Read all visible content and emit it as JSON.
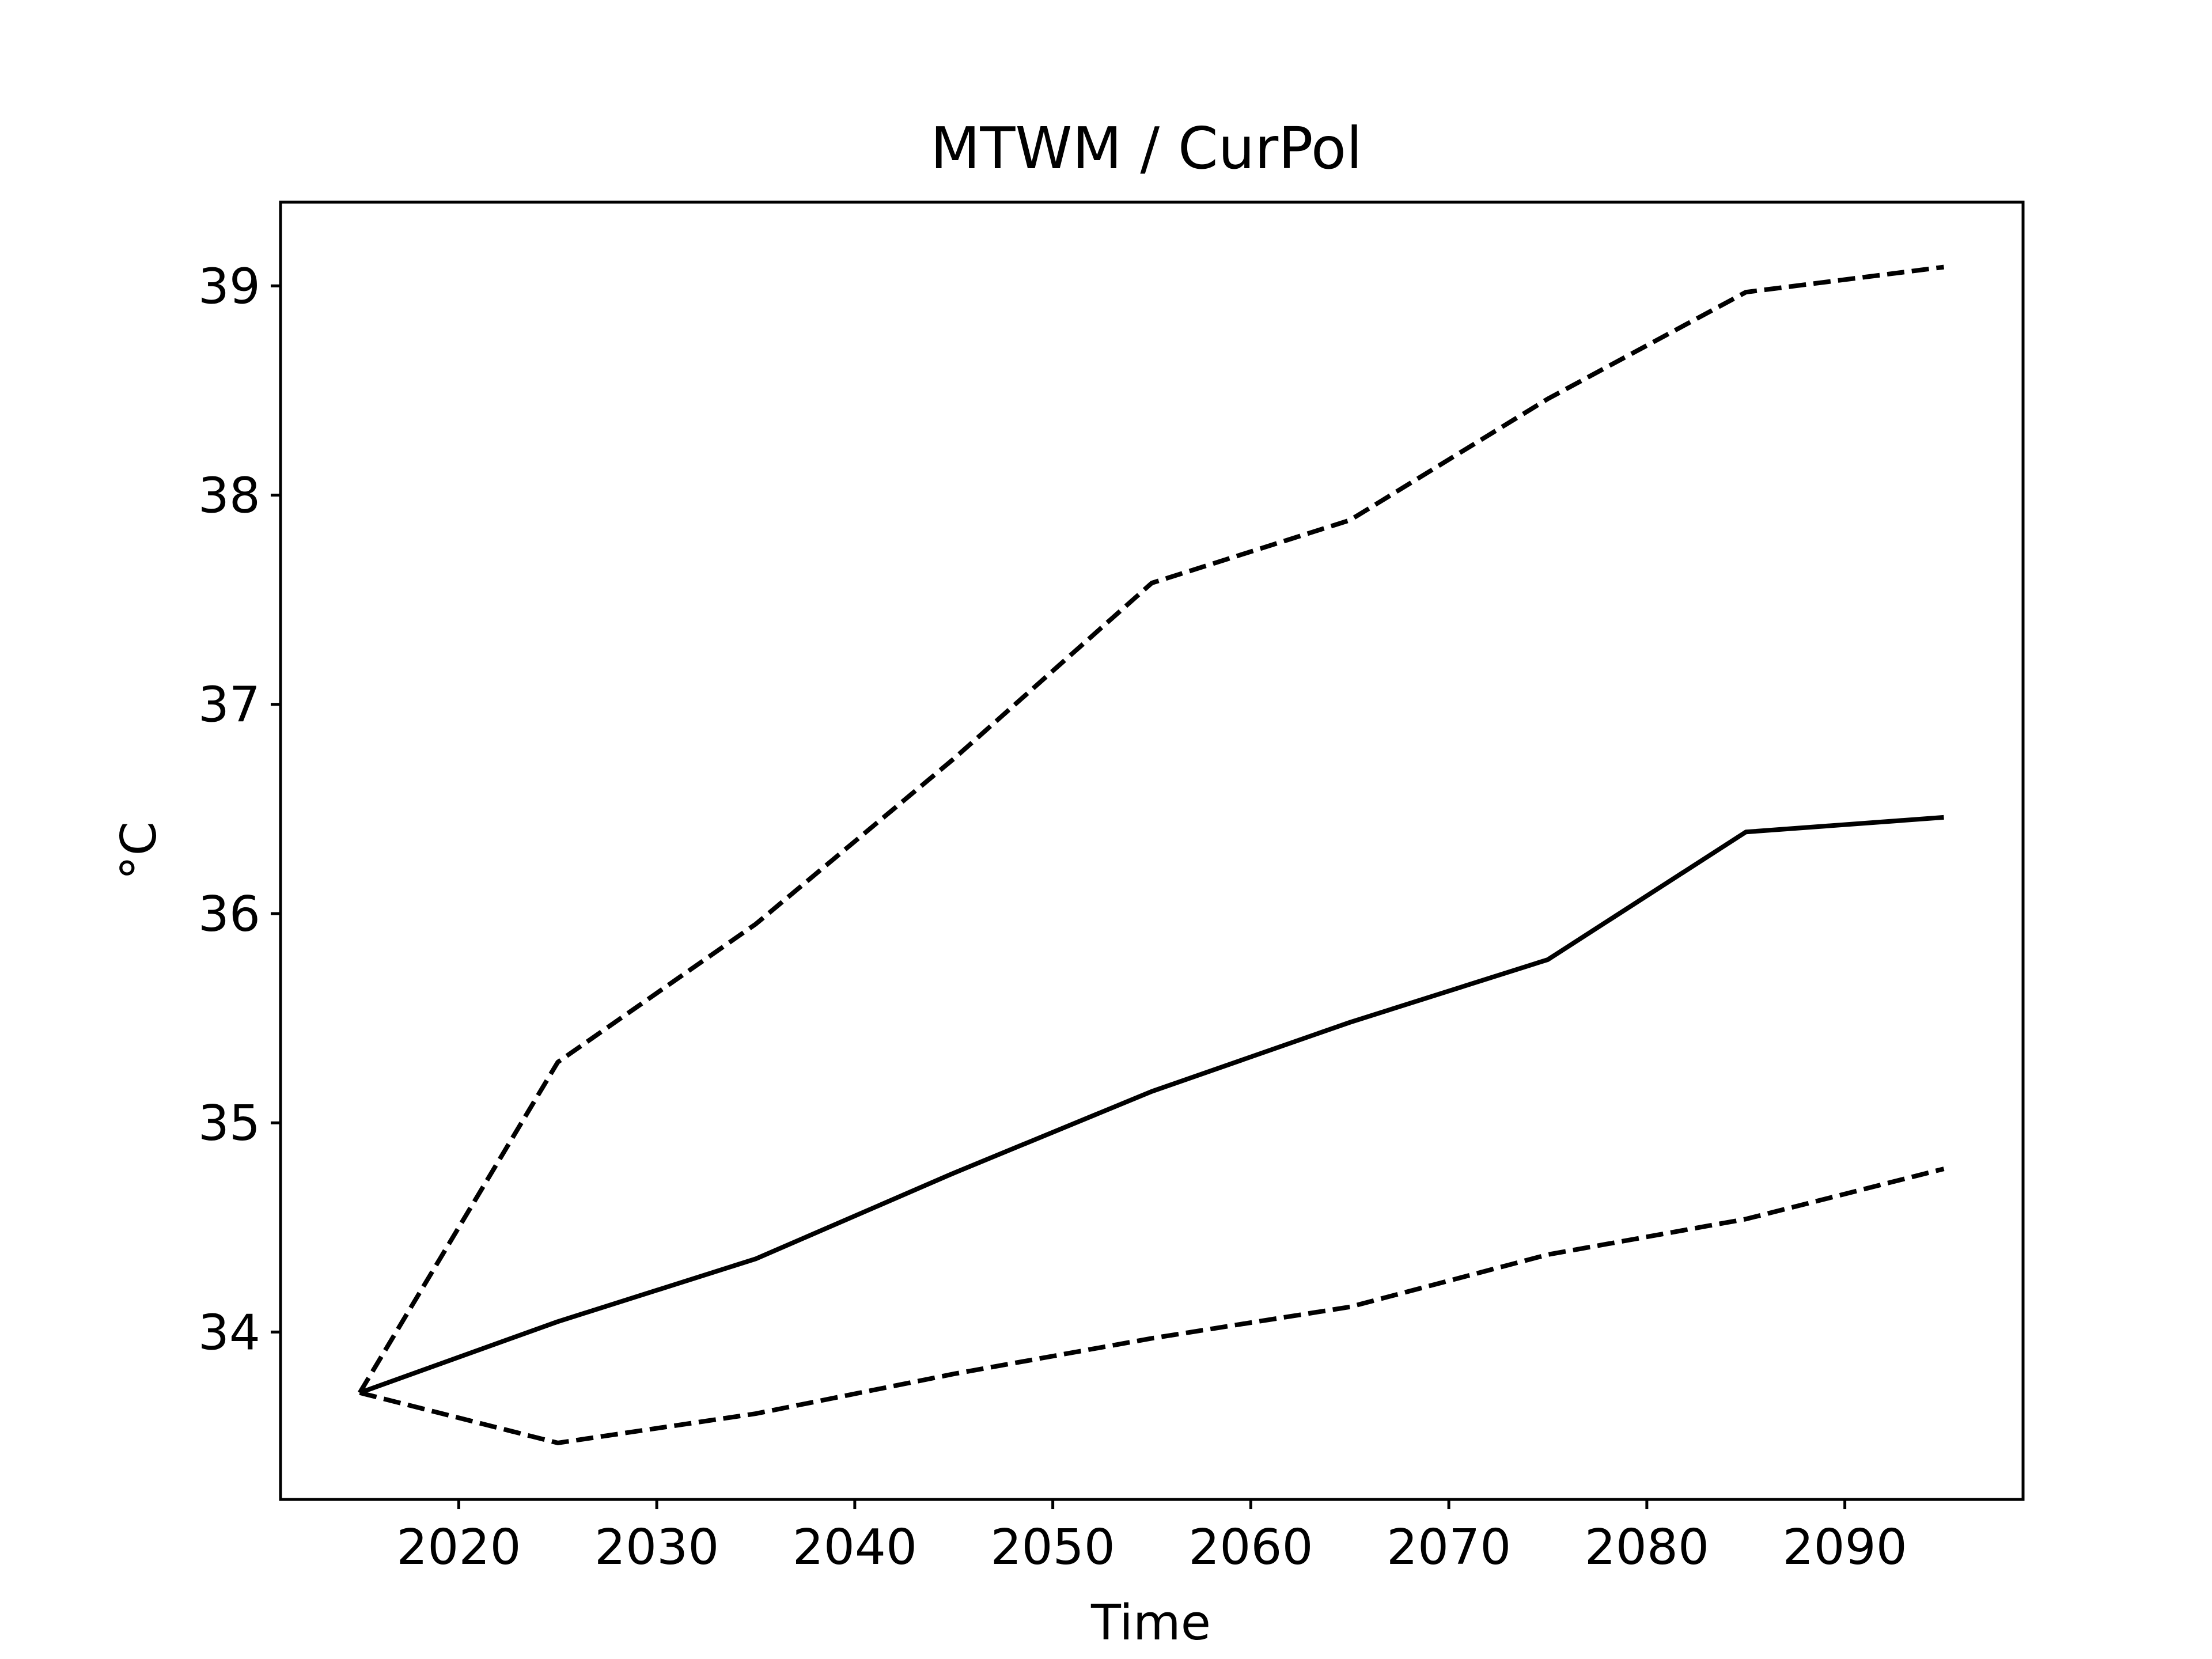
{
  "chart_data": {
    "type": "line",
    "title": "MTWM / CurPol",
    "xlabel": "Time",
    "ylabel": "°C",
    "xlim": [
      2011,
      2099
    ],
    "ylim": [
      33.2,
      39.4
    ],
    "xticks": [
      2020,
      2030,
      2040,
      2050,
      2060,
      2070,
      2080,
      2090
    ],
    "yticks": [
      34,
      35,
      36,
      37,
      38,
      39
    ],
    "grid": false,
    "legend": "none",
    "x": [
      2015,
      2025,
      2035,
      2045,
      2055,
      2065,
      2075,
      2085,
      2095
    ],
    "series": [
      {
        "style": "solid",
        "color": "#000000",
        "values": [
          33.71,
          34.05,
          34.35,
          34.76,
          35.15,
          35.48,
          35.78,
          36.39,
          36.46
        ]
      },
      {
        "style": "dashed",
        "color": "#000000",
        "values": [
          33.71,
          35.29,
          35.95,
          36.74,
          37.58,
          37.88,
          38.46,
          38.97,
          39.09
        ]
      },
      {
        "style": "dashed",
        "color": "#000000",
        "values": [
          33.71,
          33.47,
          33.61,
          33.8,
          33.97,
          34.12,
          34.37,
          34.54,
          34.78
        ]
      }
    ]
  }
}
